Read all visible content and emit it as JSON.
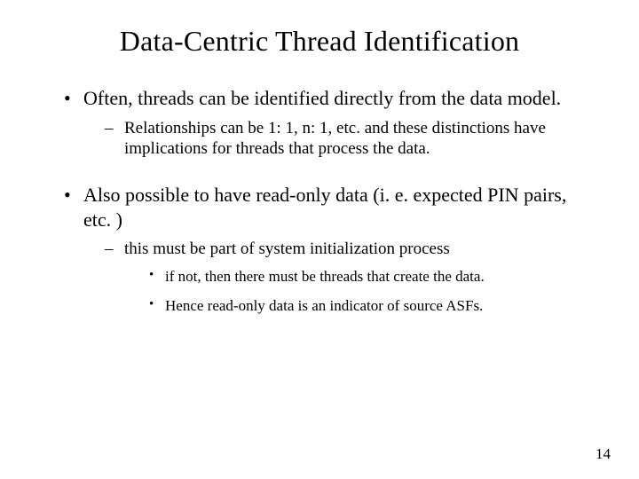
{
  "slide": {
    "title": "Data-Centric Thread Identification",
    "bullets": [
      {
        "text": "Often, threads can be identified directly from the data model.",
        "sub": [
          {
            "text": " Relationships can be 1: 1, n: 1, etc. and these distinctions have implications for threads that process the data."
          }
        ]
      },
      {
        "text": "Also possible to have read-only data (i. e. expected PIN pairs, etc. )",
        "sub": [
          {
            "text": "this must be part of system initialization process",
            "sub": [
              {
                "text": "if not, then there must be threads that create the data."
              },
              {
                "text": "Hence read-only data is an indicator of source ASFs."
              }
            ]
          }
        ]
      }
    ],
    "page_number": "14"
  },
  "style": {
    "background_color": "#ffffff",
    "text_color": "#000000",
    "title_fontsize": 32,
    "level1_fontsize": 22,
    "level2_fontsize": 19,
    "level3_fontsize": 17,
    "font_family": "Times New Roman"
  }
}
